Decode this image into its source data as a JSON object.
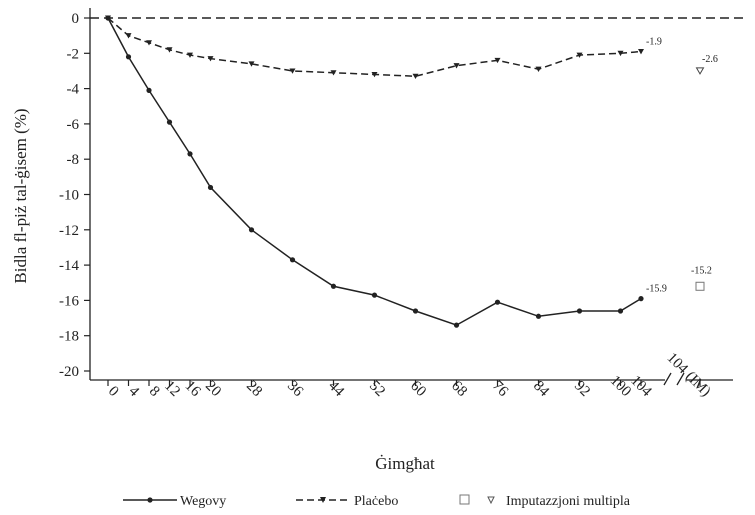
{
  "chart_data": {
    "type": "line",
    "title": "",
    "ylabel": "Bidla fl-piż tal-ġisem (%)",
    "xlabel": "Ġimgħat",
    "ylim": [
      -20,
      0
    ],
    "yticks": [
      0,
      -2,
      -4,
      -6,
      -8,
      -10,
      -12,
      -14,
      -16,
      -18,
      -20
    ],
    "xticks": [
      "0",
      "4",
      "8",
      "12",
      "16",
      "20",
      "28",
      "36",
      "44",
      "52",
      "60",
      "68",
      "76",
      "84",
      "92",
      "100",
      "104",
      "104 (IM)"
    ],
    "x": [
      0,
      4,
      8,
      12,
      16,
      20,
      28,
      36,
      44,
      52,
      60,
      68,
      76,
      84,
      92,
      100,
      104
    ],
    "series": [
      {
        "name": "Wegovy",
        "style": "solid",
        "color": "#222222",
        "values": [
          0,
          -2.2,
          -4.1,
          -5.9,
          -7.7,
          -9.6,
          -12.0,
          -13.7,
          -15.2,
          -15.7,
          -16.6,
          -17.4,
          -16.1,
          -16.9,
          -16.6,
          -16.6,
          -15.9
        ],
        "end_label": "-15.9",
        "imputed_value": -15.2,
        "imputed_label": "-15.2"
      },
      {
        "name": "Plaċebo",
        "style": "dashed",
        "color": "#222222",
        "values": [
          0,
          -1.0,
          -1.4,
          -1.8,
          -2.1,
          -2.3,
          -2.6,
          -3.0,
          -3.1,
          -3.2,
          -3.3,
          -2.7,
          -2.4,
          -2.9,
          -2.1,
          -2.0,
          -1.9
        ],
        "end_label": "-1.9",
        "imputed_value": -2.6,
        "imputed_label": "-2.6"
      }
    ],
    "legend": {
      "placement": "bottom",
      "items": [
        "Wegovy",
        "Plaċebo",
        "Imputazzjoni multipla"
      ]
    },
    "grid": false,
    "reference_line": 0
  }
}
